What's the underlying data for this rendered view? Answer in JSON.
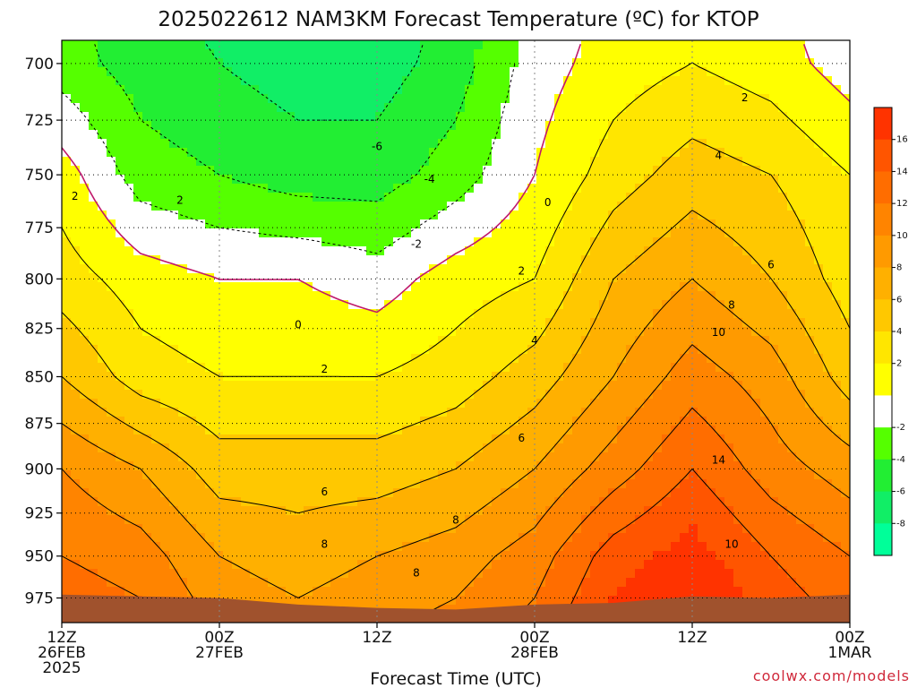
{
  "chart_data": {
    "type": "contour",
    "title": "2025022612 NAM3KM Forecast Temperature (ºC) for KTOP",
    "xlabel": "Forecast Time (UTC)",
    "ylabel": "",
    "credit": "coolwx.com/models",
    "x_range_hours": [
      0,
      60
    ],
    "y_range_hPa": [
      990,
      690
    ],
    "y_scale": "log-pressure (inverted)",
    "grid": "dotted",
    "x_ticks": [
      {
        "hour": 0,
        "line1": "12Z",
        "line2": "26FEB",
        "line3": "2025"
      },
      {
        "hour": 12,
        "line1": "00Z",
        "line2": "27FEB",
        "line3": ""
      },
      {
        "hour": 24,
        "line1": "12Z",
        "line2": "",
        "line3": ""
      },
      {
        "hour": 36,
        "line1": "00Z",
        "line2": "28FEB",
        "line3": ""
      },
      {
        "hour": 48,
        "line1": "12Z",
        "line2": "",
        "line3": ""
      },
      {
        "hour": 60,
        "line1": "00Z",
        "line2": "1MAR",
        "line3": ""
      }
    ],
    "y_ticks": [
      {
        "value": 700,
        "label": "700"
      },
      {
        "value": 725,
        "label": "725"
      },
      {
        "value": 750,
        "label": "750"
      },
      {
        "value": 775,
        "label": "775"
      },
      {
        "value": 800,
        "label": "800"
      },
      {
        "value": 825,
        "label": "825"
      },
      {
        "value": 850,
        "label": "850"
      },
      {
        "value": 875,
        "label": "875"
      },
      {
        "value": 900,
        "label": "900"
      },
      {
        "value": 925,
        "label": "925"
      },
      {
        "value": 950,
        "label": "950"
      },
      {
        "value": 975,
        "label": "975"
      }
    ],
    "hours": [
      0,
      6,
      12,
      18,
      24,
      30,
      36,
      42,
      48,
      54,
      60
    ],
    "fields": {
      "p700": [
        -3,
        -5,
        -6,
        -7,
        -7,
        -5,
        -1,
        1,
        2,
        1,
        -1
      ],
      "p750": [
        1,
        -3,
        -4,
        -5,
        -5,
        -3,
        0,
        3,
        5,
        4,
        2
      ],
      "p800": [
        3,
        1,
        0,
        0,
        -1,
        1,
        2,
        6,
        8,
        6,
        3
      ],
      "p850": [
        6,
        3,
        2,
        2,
        2,
        3,
        5,
        8,
        11,
        9,
        5
      ],
      "p900": [
        10,
        8,
        5,
        5,
        5,
        6,
        8,
        11,
        14,
        11,
        9
      ],
      "p950": [
        12,
        11,
        8,
        7,
        8,
        9,
        11,
        15,
        17,
        14,
        12
      ]
    },
    "labeled_contours": [
      {
        "hour": 24,
        "p": 737,
        "label": "-6"
      },
      {
        "hour": 28,
        "p": 752,
        "label": "-4"
      },
      {
        "hour": 27,
        "p": 783,
        "label": "-2"
      },
      {
        "hour": 37,
        "p": 763,
        "label": "0"
      },
      {
        "hour": 18,
        "p": 823,
        "label": "0"
      },
      {
        "hour": 1,
        "p": 760,
        "label": "2"
      },
      {
        "hour": 9,
        "p": 762,
        "label": "2"
      },
      {
        "hour": 20,
        "p": 846,
        "label": "2"
      },
      {
        "hour": 35,
        "p": 796,
        "label": "2"
      },
      {
        "hour": 52,
        "p": 715,
        "label": "2"
      },
      {
        "hour": 50,
        "p": 741,
        "label": "4"
      },
      {
        "hour": 36,
        "p": 831,
        "label": "4"
      },
      {
        "hour": 35,
        "p": 883,
        "label": "6"
      },
      {
        "hour": 54,
        "p": 793,
        "label": "6"
      },
      {
        "hour": 20,
        "p": 913,
        "label": "6"
      },
      {
        "hour": 51,
        "p": 813,
        "label": "8"
      },
      {
        "hour": 20,
        "p": 943,
        "label": "8"
      },
      {
        "hour": 30,
        "p": 929,
        "label": "8"
      },
      {
        "hour": 27,
        "p": 960,
        "label": "8"
      },
      {
        "hour": 50,
        "p": 827,
        "label": "10"
      },
      {
        "hour": 51,
        "p": 943,
        "label": "10"
      },
      {
        "hour": 50,
        "p": 895,
        "label": "14"
      }
    ],
    "colorbar": {
      "labels": [
        "16",
        "14",
        "12",
        "10",
        "8",
        "6",
        "4",
        "2",
        "-2",
        "-4",
        "-6",
        "-8"
      ],
      "colors": [
        "#ff3300",
        "#ff5500",
        "#ff6d00",
        "#ff8400",
        "#ff9a00",
        "#ffb000",
        "#ffc800",
        "#ffe600",
        "#ffff00",
        "#ffffff",
        "#55ff00",
        "#22ee33",
        "#11ee66",
        "#00ff99"
      ]
    },
    "colors": {
      "freezing_line": "#c0186a",
      "terrain": "#a0522d",
      "background": "#ffffff"
    }
  }
}
